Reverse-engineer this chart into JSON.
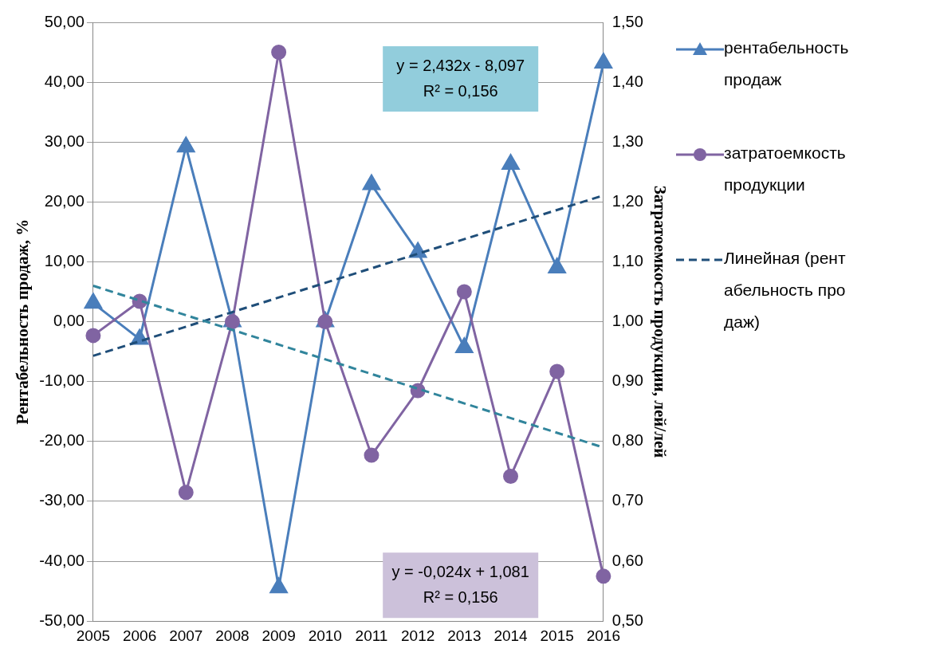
{
  "chart_data": {
    "type": "line",
    "ylabel": "Рентабельность продаж, %",
    "y2label": "Затратоемкость продукции, лей/лей",
    "categories": [
      "2005",
      "2006",
      "2007",
      "2008",
      "2009",
      "2010",
      "2011",
      "2012",
      "2013",
      "2014",
      "2015",
      "2016"
    ],
    "series": [
      {
        "name": "рентабельность продаж",
        "color": "#4a7ebb",
        "marker": "triangle",
        "line_style": "solid",
        "values": [
          3.1,
          -2.9,
          29.2,
          0,
          -44.4,
          0,
          22.9,
          11.6,
          -4.3,
          26.3,
          9,
          43.2
        ]
      },
      {
        "name": "затратоемкость продукции",
        "color": "#8064a2",
        "marker": "circle",
        "line_style": "solid",
        "axis": "y2",
        "values": [
          0.977,
          1.034,
          0.715,
          1.0,
          1.45,
          1.0,
          0.777,
          0.885,
          1.05,
          0.742,
          0.917,
          0.575
        ]
      },
      {
        "name": "Линейная (рентабельность продаж)",
        "color": "#1f4e79",
        "marker": "none",
        "line_style": "dashed",
        "values": [
          -5.7,
          null,
          null,
          null,
          null,
          null,
          null,
          null,
          null,
          null,
          null,
          21.1
        ]
      },
      {
        "color": "#31859c",
        "marker": "none",
        "line_style": "dashed",
        "axis": "y2",
        "values": [
          1.06,
          null,
          null,
          null,
          null,
          null,
          null,
          null,
          null,
          null,
          null,
          0.79
        ]
      }
    ],
    "ylim": [
      -50,
      50
    ],
    "yticks": [
      {
        "value": -50,
        "label": "-50,00"
      },
      {
        "value": -40,
        "label": "-40,00"
      },
      {
        "value": -30,
        "label": "-30,00"
      },
      {
        "value": -20,
        "label": "-20,00"
      },
      {
        "value": -10,
        "label": "-10,00"
      },
      {
        "value": 0,
        "label": "0,00"
      },
      {
        "value": 10,
        "label": "10,00"
      },
      {
        "value": 20,
        "label": "20,00"
      },
      {
        "value": 30,
        "label": "30,00"
      },
      {
        "value": 40,
        "label": "40,00"
      },
      {
        "value": 50,
        "label": "50,00"
      }
    ],
    "y2lim": [
      0.5,
      1.5
    ],
    "y2ticks": [
      {
        "value": 0.5,
        "label": "0,50"
      },
      {
        "value": 0.6,
        "label": "0,60"
      },
      {
        "value": 0.7,
        "label": "0,70"
      },
      {
        "value": 0.8,
        "label": "0,80"
      },
      {
        "value": 0.9,
        "label": "0,90"
      },
      {
        "value": 1.0,
        "label": "1,00"
      },
      {
        "value": 1.1,
        "label": "1,10"
      },
      {
        "value": 1.2,
        "label": "1,20"
      },
      {
        "value": 1.3,
        "label": "1,30"
      },
      {
        "value": 1.4,
        "label": "1,40"
      },
      {
        "value": 1.5,
        "label": "1,50"
      }
    ],
    "annotations": [
      "y = 2,432x - 8,097\nR² = 0,156",
      "y = -0,024x + 1,081\nR² = 0,156"
    ],
    "grid": "y",
    "legend": "right"
  }
}
